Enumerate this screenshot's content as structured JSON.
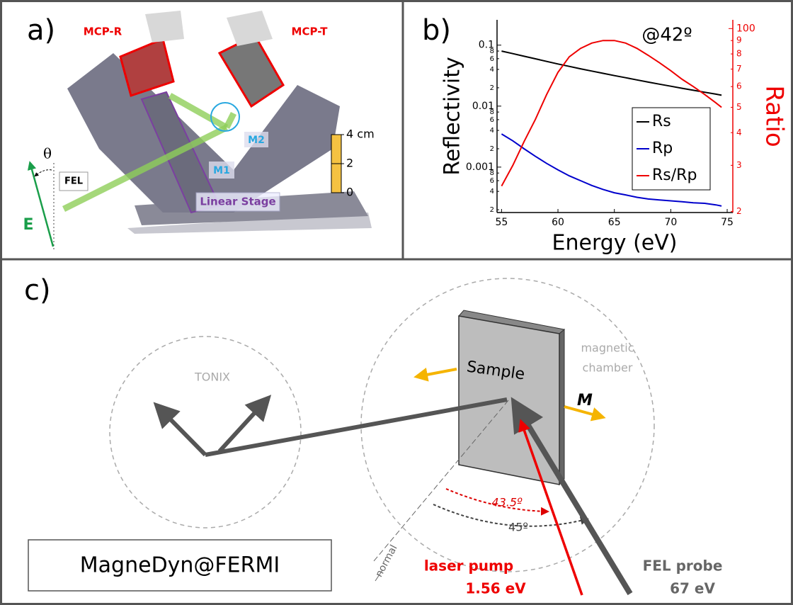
{
  "panel_a": {
    "label": "a)",
    "mcp_r": "MCP-R",
    "mcp_t": "MCP-T",
    "m2": "M2",
    "m1": "M1",
    "fel": "FEL",
    "linear_stage": "Linear Stage",
    "theta": "θ",
    "field": "E",
    "scale_bar": {
      "range": [
        0,
        4
      ],
      "ticks": [
        0,
        2,
        {
          "value": 4,
          "label": "4 cm"
        }
      ],
      "color": "#f5c242"
    }
  },
  "panel_b": {
    "label": "b)"
  },
  "chart_data": {
    "type": "line",
    "annotation": "@42º",
    "xlabel": "Energy (eV)",
    "ylabel": "Reflectivity",
    "y2label": "Ratio",
    "x": [
      55,
      56,
      57,
      58,
      59,
      60,
      61,
      62,
      63,
      64,
      65,
      66,
      67,
      68,
      69,
      70,
      71,
      72,
      73,
      74,
      74.5
    ],
    "series": [
      {
        "name": "Rs",
        "color": "#000000",
        "values": [
          0.08,
          0.0726,
          0.0658,
          0.0597,
          0.0541,
          0.0491,
          0.0448,
          0.041,
          0.0376,
          0.0345,
          0.0317,
          0.0292,
          0.0269,
          0.0248,
          0.0229,
          0.0212,
          0.0196,
          0.0182,
          0.0169,
          0.0157,
          0.0151
        ]
      },
      {
        "name": "Rp",
        "color": "#0000cc",
        "values": [
          0.0035,
          0.0027,
          0.002,
          0.0015,
          0.00115,
          0.0009,
          0.00072,
          0.0006,
          0.0005,
          0.00043,
          0.00038,
          0.00035,
          0.00032,
          0.0003,
          0.00029,
          0.00028,
          0.00027,
          0.00026,
          0.000255,
          0.00024,
          0.00023
        ]
      },
      {
        "name": "Rs/Rp",
        "color": "#ee0000",
        "axis": "y2",
        "values": [
          25,
          30,
          37,
          45,
          56,
          68,
          78,
          84,
          88,
          90,
          90,
          88,
          84,
          79,
          74,
          69,
          64,
          60,
          56,
          52,
          50
        ]
      }
    ],
    "xlim": [
      54.6,
      75.5
    ],
    "xticks": [
      55,
      60,
      65,
      70,
      75
    ],
    "ylim": [
      0.00018,
      0.26
    ],
    "yscale": "log",
    "yticks": [
      0.1,
      {
        "value": 0.08,
        "label": "8"
      },
      {
        "value": 0.06,
        "label": "6"
      },
      {
        "value": 0.04,
        "label": "4"
      },
      {
        "value": 0.02,
        "label": "2"
      },
      0.01,
      {
        "value": 0.008,
        "label": "8"
      },
      {
        "value": 0.006,
        "label": "6"
      },
      {
        "value": 0.004,
        "label": "4"
      },
      {
        "value": 0.002,
        "label": "2"
      },
      0.001,
      {
        "value": 0.0008,
        "label": "8"
      },
      {
        "value": 0.0006,
        "label": "6"
      },
      {
        "value": 0.0004,
        "label": "4"
      },
      {
        "value": 0.0002,
        "label": "2"
      }
    ],
    "y2lim": [
      19.8,
      108
    ],
    "y2scale": "log",
    "y2color": "#ee0000",
    "y2ticks": [
      100,
      {
        "value": 90,
        "label": "9"
      },
      {
        "value": 80,
        "label": "8"
      },
      {
        "value": 70,
        "label": "7"
      },
      {
        "value": 60,
        "label": "6"
      },
      {
        "value": 50,
        "label": "5"
      },
      {
        "value": 40,
        "label": "4"
      },
      {
        "value": 30,
        "label": "3"
      },
      {
        "value": 20,
        "label": "2"
      }
    ],
    "grid": false,
    "legend": "right"
  },
  "panel_c": {
    "label": "c)",
    "tonix": "TONIX",
    "chamber_label": [
      "magnetic",
      "chamber"
    ],
    "sample": "Sample",
    "magnetization": "M",
    "angle_laser": "43.5º",
    "angle_fel": "45º",
    "normal": "normal",
    "laser_pump": "laser pump",
    "laser_energy": "1.56 eV",
    "fel_probe": "FEL probe",
    "fel_energy": "67 eV",
    "facility": "MagneDyn@FERMI"
  }
}
